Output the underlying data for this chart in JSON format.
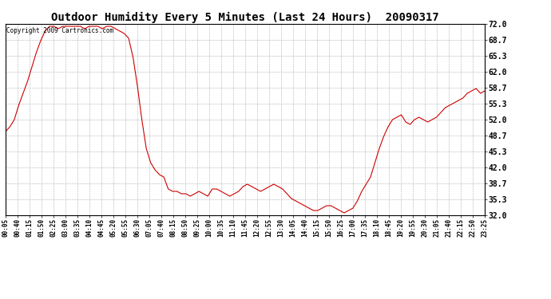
{
  "title": "Outdoor Humidity Every 5 Minutes (Last 24 Hours)  20090317",
  "copyright": "Copyright 2009 Cartronics.com",
  "line_color": "#cc0000",
  "background_color": "#ffffff",
  "grid_color": "#b0b0b0",
  "ylim": [
    32.0,
    72.0
  ],
  "yticks": [
    32.0,
    35.3,
    38.7,
    42.0,
    45.3,
    48.7,
    52.0,
    55.3,
    58.7,
    62.0,
    65.3,
    68.7,
    72.0
  ],
  "x_labels": [
    "00:05",
    "00:40",
    "01:15",
    "01:50",
    "02:25",
    "03:00",
    "03:35",
    "04:10",
    "04:45",
    "05:20",
    "05:55",
    "06:30",
    "07:05",
    "07:40",
    "08:15",
    "08:50",
    "09:25",
    "10:00",
    "10:35",
    "11:10",
    "11:45",
    "12:20",
    "12:55",
    "13:30",
    "14:05",
    "14:40",
    "15:15",
    "15:50",
    "16:25",
    "17:00",
    "17:35",
    "18:10",
    "18:45",
    "19:20",
    "19:55",
    "20:30",
    "21:05",
    "21:40",
    "22:15",
    "22:50",
    "23:25"
  ],
  "humidity_values": [
    49.5,
    50.5,
    52.0,
    55.0,
    57.5,
    60.0,
    63.0,
    66.0,
    68.5,
    70.5,
    71.5,
    71.5,
    71.0,
    71.5,
    71.5,
    71.5,
    71.5,
    71.5,
    71.0,
    71.5,
    71.5,
    71.5,
    71.0,
    71.5,
    71.5,
    71.0,
    70.5,
    70.0,
    69.0,
    65.0,
    59.0,
    52.0,
    46.0,
    43.0,
    41.5,
    40.5,
    40.0,
    37.5,
    37.0,
    37.0,
    36.5,
    36.5,
    36.0,
    36.5,
    37.0,
    36.5,
    36.0,
    37.5,
    37.5,
    37.0,
    36.5,
    36.0,
    36.5,
    37.0,
    38.0,
    38.5,
    38.0,
    37.5,
    37.0,
    37.5,
    38.0,
    38.5,
    38.0,
    37.5,
    36.5,
    35.5,
    35.0,
    34.5,
    34.0,
    33.5,
    33.0,
    33.0,
    33.5,
    34.0,
    34.0,
    33.5,
    33.0,
    32.5,
    33.0,
    33.5,
    35.0,
    37.0,
    38.5,
    40.0,
    43.0,
    46.0,
    48.5,
    50.5,
    52.0,
    52.5,
    53.0,
    51.5,
    51.0,
    52.0,
    52.5,
    52.0,
    51.5,
    52.0,
    52.5,
    53.5,
    54.5,
    55.0,
    55.5,
    56.0,
    56.5,
    57.5,
    58.0,
    58.5,
    57.5,
    58.0
  ]
}
